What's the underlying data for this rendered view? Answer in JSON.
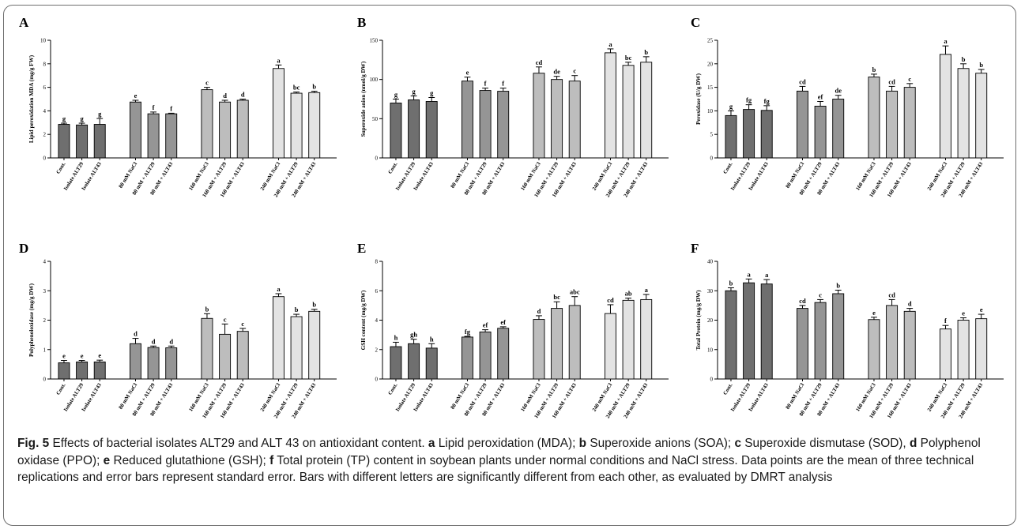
{
  "caption": {
    "fig_label": "Fig. 5",
    "text_parts": [
      {
        "t": " Effects of bacterial isolates ALT29 and ALT 43 on antioxidant content. ",
        "b": false
      },
      {
        "t": "a",
        "b": true
      },
      {
        "t": " Lipid peroxidation (MDA); ",
        "b": false
      },
      {
        "t": "b",
        "b": true
      },
      {
        "t": " Superoxide anions (SOA); ",
        "b": false
      },
      {
        "t": "c",
        "b": true
      },
      {
        "t": " Superoxide dismutase (SOD), ",
        "b": false
      },
      {
        "t": "d",
        "b": true
      },
      {
        "t": " Polyphenol oxidase (PPO); ",
        "b": false
      },
      {
        "t": "e",
        "b": true
      },
      {
        "t": " Reduced glutathione (GSH); ",
        "b": false
      },
      {
        "t": "f",
        "b": true
      },
      {
        "t": " Total protein (TP) content in soybean plants under normal conditions and NaCl stress. Data points are the mean of three technical replications and error bars represent standard error. Bars with different letters are significantly different from each other, as evaluated by DMRT analysis",
        "b": false
      }
    ]
  },
  "colors": {
    "group1": "#6f6f6f",
    "group2": "#959595",
    "group3": "#bdbdbd",
    "group4": "#e3e3e3",
    "axis": "#000000"
  },
  "chart_data": [
    {
      "panel": "A",
      "type": "bar",
      "ylabel": "Lipid peroxidation MDA (mg/g FW)",
      "ylim": [
        0,
        10
      ],
      "yticks": [
        0,
        2,
        4,
        6,
        8,
        10
      ],
      "categories": [
        "Cont.",
        "Isolate ALT29",
        "Isolate ALT43",
        "80 mM NaCl",
        "80 mM + ALT29",
        "80 mM + ALT43",
        "160 mM NaCl",
        "160 mM + ALT29",
        "160 mM + ALT43",
        "240 mM NaCl",
        "240 mM + ALT29",
        "240 mM + ALT43"
      ],
      "values": [
        2.85,
        2.8,
        2.85,
        4.75,
        3.75,
        3.75,
        5.8,
        4.75,
        4.9,
        7.6,
        5.5,
        5.55
      ],
      "errors": [
        0.1,
        0.15,
        0.5,
        0.15,
        0.15,
        0.05,
        0.2,
        0.15,
        0.1,
        0.3,
        0.1,
        0.12
      ],
      "letters": [
        "g",
        "g",
        "g",
        "e",
        "f",
        "f",
        "c",
        "d",
        "d",
        "a",
        "bc",
        "b"
      ]
    },
    {
      "panel": "B",
      "type": "bar",
      "ylabel": "Superoxide anion (nmol/g DW)",
      "ylim": [
        0,
        150
      ],
      "yticks": [
        0,
        50,
        100,
        150
      ],
      "categories": [
        "Cont.",
        "Isolate ALT29",
        "Isolate ALT43",
        "80 mM NaCl",
        "80 mM + ALT29",
        "80 mM + ALT43",
        "160 mM NaCl",
        "160 mM + ALT29",
        "160 mM + ALT43",
        "240 mM NaCl",
        "240 mM + ALT29",
        "240 mM + ALT43"
      ],
      "values": [
        70,
        74,
        72,
        98,
        86,
        85,
        108,
        100,
        98,
        134,
        118,
        122
      ],
      "errors": [
        5,
        5,
        5,
        5,
        3,
        4,
        8,
        4,
        7,
        5,
        4,
        7
      ],
      "letters": [
        "g",
        "g",
        "g",
        "e",
        "f",
        "f",
        "cd",
        "de",
        "c",
        "a",
        "bc",
        "b"
      ]
    },
    {
      "panel": "C",
      "type": "bar",
      "ylabel": "Peroxidase (U/g DW)",
      "ylim": [
        0,
        25
      ],
      "yticks": [
        0,
        5,
        10,
        15,
        20,
        25
      ],
      "categories": [
        "Cont.",
        "Isolate ALT29",
        "Isolate ALT43",
        "80 mM NaCl",
        "80 mM + ALT29",
        "80 mM + ALT43",
        "160 mM NaCl",
        "160 mM + ALT29",
        "160 mM + ALT43",
        "240 mM NaCl",
        "240 mM + ALT29",
        "240 mM + ALT43"
      ],
      "values": [
        9,
        10.3,
        10.1,
        14.2,
        11,
        12.5,
        17.2,
        14.2,
        15,
        22,
        19,
        18
      ],
      "errors": [
        1,
        1,
        1,
        1,
        1,
        0.8,
        0.6,
        1,
        0.8,
        1.8,
        1,
        0.8
      ],
      "letters": [
        "g",
        "fg",
        "fg",
        "cd",
        "ef",
        "de",
        "b",
        "cd",
        "c",
        "a",
        "b",
        "b"
      ]
    },
    {
      "panel": "D",
      "type": "bar",
      "ylabel": "Polyphenoloxidase (mg/g DW)",
      "ylim": [
        0,
        4
      ],
      "yticks": [
        0,
        1,
        2,
        3,
        4
      ],
      "categories": [
        "Cont.",
        "Isolate ALT29",
        "Isolate ALT43",
        "80 mM NaCl",
        "80 mM + ALT29",
        "80 mM + ALT43",
        "160 mM NaCl",
        "160 mM + ALT29",
        "160 mM + ALT43",
        "240 mM NaCl",
        "240 mM + ALT29",
        "240 mM + ALT43"
      ],
      "values": [
        0.55,
        0.58,
        0.58,
        1.2,
        1.07,
        1.06,
        2.06,
        1.52,
        1.62,
        2.8,
        2.12,
        2.3
      ],
      "errors": [
        0.08,
        0.05,
        0.06,
        0.18,
        0.05,
        0.06,
        0.16,
        0.35,
        0.1,
        0.1,
        0.08,
        0.07
      ],
      "letters": [
        "e",
        "e",
        "e",
        "d",
        "d",
        "d",
        "b",
        "c",
        "c",
        "a",
        "b",
        "b"
      ]
    },
    {
      "panel": "E",
      "type": "bar",
      "ylabel": "GSH content (mg/g DW)",
      "ylim": [
        0,
        8
      ],
      "yticks": [
        0,
        2,
        4,
        6,
        8
      ],
      "categories": [
        "Cont.",
        "Isolate ALT29",
        "Isolate ALT43",
        "80 mM NaCl",
        "80 mM + ALT29",
        "80 mM + ALT43",
        "160 mM NaCl",
        "160 mM + ALT29",
        "160 mM + ALT43",
        "240 mM NaCl",
        "240 mM + ALT29",
        "240 mM + ALT43"
      ],
      "values": [
        2.2,
        2.4,
        2.1,
        2.85,
        3.2,
        3.45,
        4.05,
        4.8,
        5.0,
        4.45,
        5.35,
        5.4
      ],
      "errors": [
        0.3,
        0.3,
        0.3,
        0.05,
        0.15,
        0.1,
        0.25,
        0.45,
        0.6,
        0.6,
        0.15,
        0.35
      ],
      "letters": [
        "h",
        "gh",
        "h",
        "fg",
        "ef",
        "ef",
        "d",
        "bc",
        "abc",
        "cd",
        "ab",
        "a"
      ]
    },
    {
      "panel": "F",
      "type": "bar",
      "ylabel": "Total Protein (mg/g DW)",
      "ylim": [
        0,
        40
      ],
      "yticks": [
        0,
        10,
        20,
        30,
        40
      ],
      "categories": [
        "Cont.",
        "Isolate ALT29",
        "Isolate ALT43",
        "80 mM NaCl",
        "80 mM + ALT29",
        "80 mM + ALT43",
        "160 mM NaCl",
        "160 mM + ALT29",
        "160 mM + ALT43",
        "240 mM NaCl",
        "240 mM + ALT29",
        "240 mM + ALT43"
      ],
      "values": [
        30,
        32.7,
        32.3,
        24,
        26,
        29,
        20.2,
        25,
        23,
        17,
        20,
        20.5
      ],
      "errors": [
        1,
        1.3,
        1.5,
        1,
        1,
        1.2,
        0.8,
        2,
        1,
        1.2,
        0.8,
        1.5
      ],
      "letters": [
        "b",
        "a",
        "a",
        "cd",
        "c",
        "b",
        "e",
        "cd",
        "d",
        "f",
        "e",
        "e"
      ]
    }
  ]
}
